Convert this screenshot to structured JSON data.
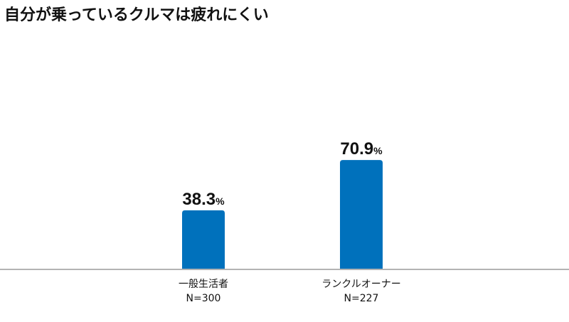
{
  "chart_data": {
    "type": "bar",
    "title": "自分が乗っているクルマは疲れにくい",
    "categories": [
      "一般生活者",
      "ランクルオーナー"
    ],
    "sample_sizes": [
      "N=300",
      "N=227"
    ],
    "values": [
      38.3,
      70.9
    ],
    "value_labels": [
      "38.3",
      "70.9"
    ],
    "unit": "%",
    "xlabel": "",
    "ylabel": "",
    "ylim": [
      0,
      100
    ],
    "grid": false,
    "bar_color": "#0071bc",
    "axis_color": "#b3b3b3"
  }
}
